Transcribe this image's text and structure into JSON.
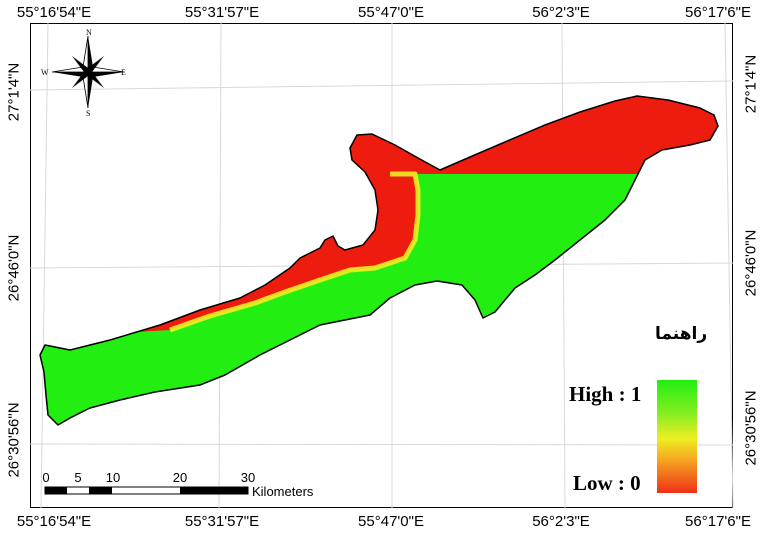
{
  "coordinates": {
    "top": [
      "55°16'54\"E",
      "55°31'57\"E",
      "55°47'0\"E",
      "56°2'3\"E",
      "56°17'6\"E"
    ],
    "bottom": [
      "55°16'54\"E",
      "55°31'57\"E",
      "55°47'0\"E",
      "56°2'3\"E",
      "56°17'6\"E"
    ],
    "left": [
      "27°1'4\"N",
      "26°46'0\"N",
      "26°30'56\"N"
    ],
    "right": [
      "27°1'4\"N",
      "26°46'0\"N",
      "26°30'56\"N"
    ]
  },
  "compass": {
    "north": "N",
    "south": "S",
    "east": "E",
    "west": "W"
  },
  "legend": {
    "title": "راهنما",
    "high_label": "High : 1",
    "low_label": "Low : 0",
    "colors": {
      "high": "#22ee11",
      "mid": "#eeee22",
      "low": "#f03018"
    }
  },
  "scale_bar": {
    "ticks": [
      "0",
      "5",
      "10",
      "20",
      "30"
    ],
    "unit": "Kilometers"
  },
  "map_colors": {
    "suitable": "#22ee11",
    "unsuitable": "#ee1c0e",
    "transition": "#eeee22"
  }
}
